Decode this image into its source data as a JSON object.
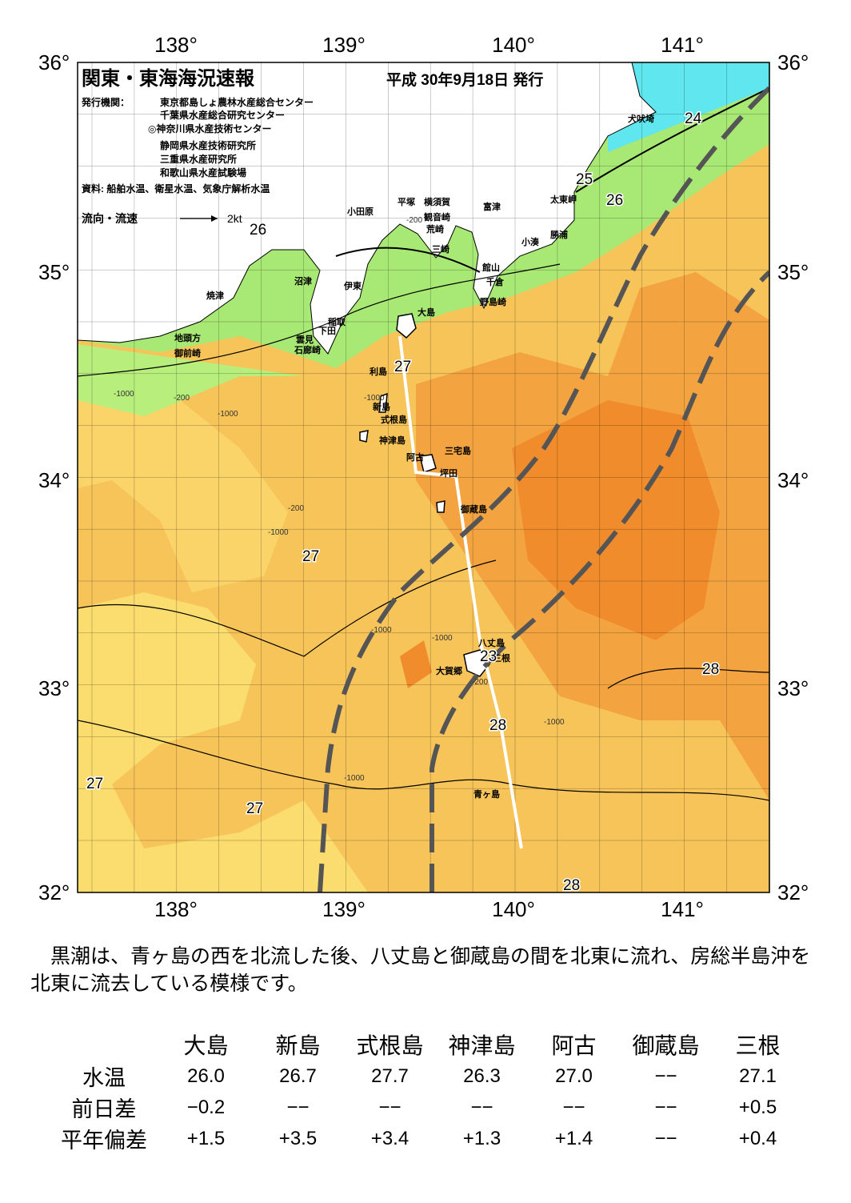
{
  "header": {
    "title": "関東・東海海況速報",
    "date": "平成 30年9月18日 発行",
    "issuer_label": "発行機関：",
    "issuers": [
      "東京都島しょ農林水産総合センター",
      "千葉県水産総合研究センター",
      "◎神奈川県水産技術センター",
      "静岡県水産技術研究所",
      "三重県水産研究所",
      "和歌山県水産試験場"
    ],
    "source": "資料: 船舶水温、衛星水温、気象庁解析水温",
    "legend_label": "流向・流速",
    "legend_speed": "2kt",
    "legend_temp": "26"
  },
  "map": {
    "lon_labels_top": [
      "138°",
      "139°",
      "140°",
      "141°"
    ],
    "lon_labels_bottom": [
      "138°",
      "139°",
      "140°",
      "141°"
    ],
    "lat_labels_left": [
      "36°",
      "35°",
      "34°",
      "33°",
      "32°"
    ],
    "lat_labels_right": [
      "36°",
      "35°",
      "34°",
      "33°",
      "32°"
    ],
    "places": [
      "犬吠埼",
      "太東岬",
      "勝浦",
      "小湊",
      "館山",
      "千倉",
      "野島崎",
      "富津",
      "観音崎",
      "横須賀",
      "平塚",
      "小田原",
      "荒崎",
      "三崎",
      "沼津",
      "伊東",
      "焼津",
      "稲取",
      "下田",
      "雲見",
      "石廊崎",
      "大島",
      "地頭方",
      "御前崎",
      "利島",
      "新島",
      "式根島",
      "神津島",
      "三宅島",
      "阿古",
      "坪田",
      "御蔵島",
      "八丈島",
      "大賀郷",
      "三根",
      "青ヶ島"
    ],
    "contour_labels": [
      "24",
      "25",
      "26",
      "27",
      "27",
      "28",
      "23",
      "28",
      "27",
      "27",
      "28"
    ],
    "depth_labels": [
      "-200",
      "-1000",
      "-200",
      "-1000",
      "-1000",
      "-200",
      "-1000",
      "-1000",
      "-1000",
      "-1000",
      "-200",
      "-1000"
    ]
  },
  "description": "黒潮は、青ヶ島の西を北流した後、八丈島と御蔵島の間を北東に流れ、房総半島沖を北東に流去している模様です。",
  "table": {
    "columns": [
      "大島",
      "新島",
      "式根島",
      "神津島",
      "阿古",
      "御蔵島",
      "三根"
    ],
    "rows": [
      {
        "label": "水温",
        "values": [
          "26.0",
          "26.7",
          "27.7",
          "26.3",
          "27.0",
          "−−",
          "27.1"
        ]
      },
      {
        "label": "前日差",
        "values": [
          "−0.2",
          "−−",
          "−−",
          "−−",
          "−−",
          "−−",
          "+0.5"
        ]
      },
      {
        "label": "平年偏差",
        "values": [
          "+1.5",
          "+3.5",
          "+3.4",
          "+1.3",
          "+1.4",
          "−−",
          "+0.4"
        ]
      }
    ]
  }
}
